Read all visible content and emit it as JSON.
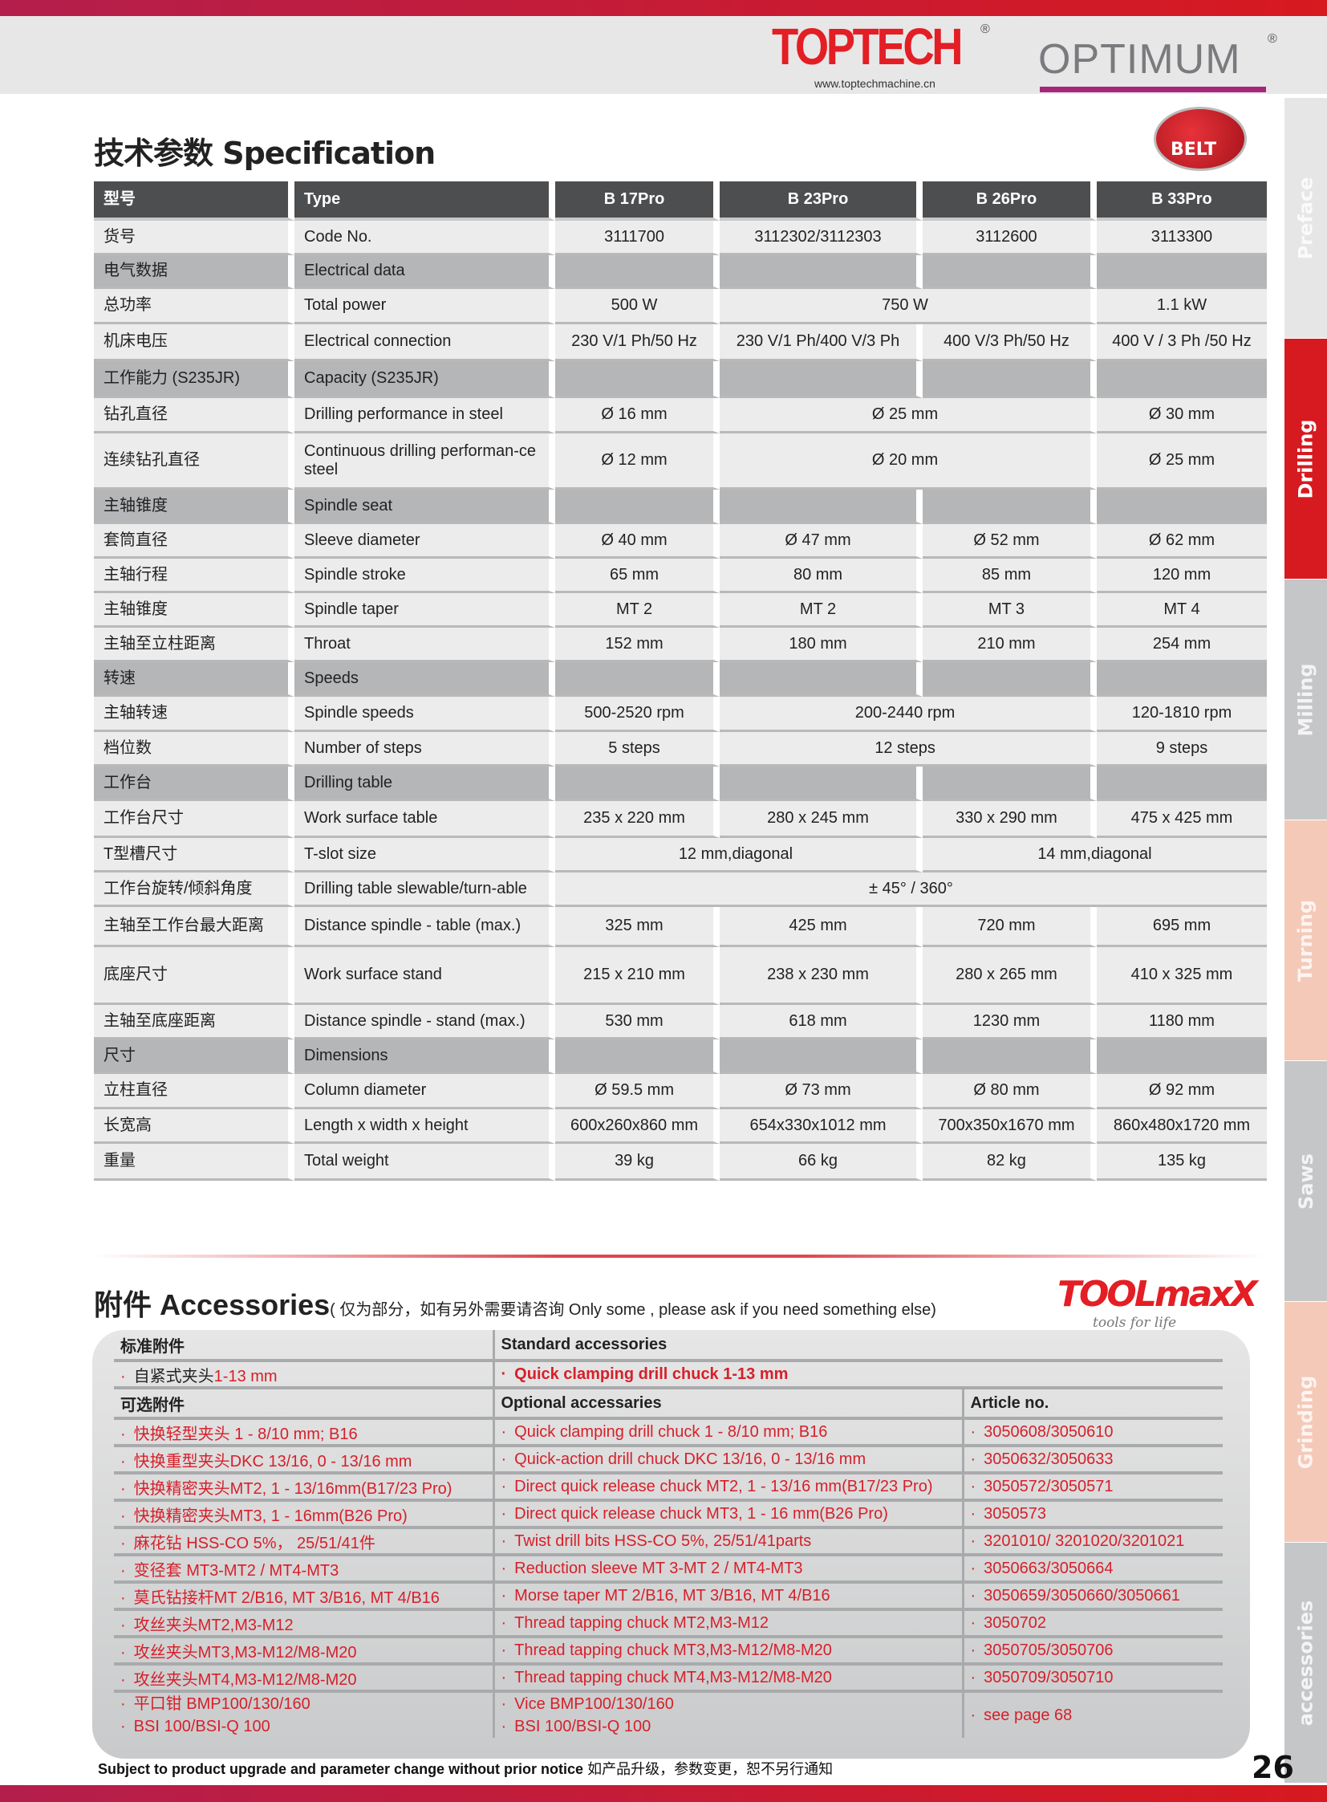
{
  "header": {
    "brand1": "TOPTECH",
    "brand1_url": "www.toptechmachine.cn",
    "brand2": "OPTIMUM",
    "registered": "®"
  },
  "title": "技术参数 Specification",
  "badge": "BELT",
  "side_tabs": [
    {
      "label": "Preface",
      "color": "#e6e6e6",
      "active": false
    },
    {
      "label": "Drilling",
      "color": "#d71920",
      "active": true
    },
    {
      "label": "Milling",
      "color": "#c5c6c8",
      "active": false
    },
    {
      "label": "Turning",
      "color": "#f4c9b8",
      "active": false
    },
    {
      "label": "Saws",
      "color": "#c5c6c8",
      "active": false
    },
    {
      "label": "Grinding",
      "color": "#f4c9b8",
      "active": false
    },
    {
      "label": "accessories",
      "color": "#c5c6c8",
      "active": false
    }
  ],
  "spec": {
    "header": [
      "型号",
      "Type",
      "B 17Pro",
      "B 23Pro",
      "B 26Pro",
      "B 33Pro"
    ],
    "rows": [
      {
        "cn": "货号",
        "en": "Code No.",
        "v": [
          "3111700",
          "3112302/3112303",
          "3112600",
          "3113300"
        ]
      },
      {
        "cn": "电气数据",
        "en": "Electrical data",
        "section": true
      },
      {
        "cn": "总功率",
        "en": "Total power",
        "v": [
          "500 W",
          "750 W",
          "1.1 kW"
        ]
      },
      {
        "cn": "机床电压",
        "en": "Electrical connection",
        "v": [
          "230 V/1 Ph/50 Hz",
          "230 V/1 Ph/400 V/3 Ph",
          "400 V/3 Ph/50 Hz",
          "400 V / 3 Ph /50 Hz"
        ]
      },
      {
        "cn": "工作能力 (S235JR)",
        "en": "Capacity (S235JR)",
        "section": true
      },
      {
        "cn": "钻孔直径",
        "en": "Drilling performance in steel",
        "v": [
          "Ø 16 mm",
          "Ø 25 mm",
          "Ø 30 mm"
        ]
      },
      {
        "cn": "连续钻孔直径",
        "en": "Continuous drilling performan-ce steel",
        "v": [
          "Ø 12 mm",
          "Ø 20 mm",
          "Ø 25 mm"
        ]
      },
      {
        "cn": "主轴锥度",
        "en": "Spindle seat",
        "section": true
      },
      {
        "cn": "套筒直径",
        "en": "Sleeve diameter",
        "v": [
          "Ø 40 mm",
          "Ø 47 mm",
          "Ø 52 mm",
          "Ø 62 mm"
        ]
      },
      {
        "cn": "主轴行程",
        "en": "Spindle stroke",
        "v": [
          "65 mm",
          "80 mm",
          "85 mm",
          "120 mm"
        ]
      },
      {
        "cn": "主轴锥度",
        "en": "Spindle taper",
        "v": [
          "MT 2",
          "MT 2",
          "MT 3",
          "MT 4"
        ]
      },
      {
        "cn": "主轴至立柱距离",
        "en": "Throat",
        "v": [
          "152 mm",
          "180 mm",
          "210 mm",
          "254 mm"
        ]
      },
      {
        "cn": "转速",
        "en": "Speeds",
        "section": true
      },
      {
        "cn": "主轴转速",
        "en": "Spindle speeds",
        "v": [
          "500-2520 rpm",
          "200-2440 rpm",
          "120-1810 rpm"
        ]
      },
      {
        "cn": "档位数",
        "en": "Number of steps",
        "v": [
          "5 steps",
          "12 steps",
          "9 steps"
        ]
      },
      {
        "cn": "工作台",
        "en": "Drilling table",
        "section": true
      },
      {
        "cn": "工作台尺寸",
        "en": "Work surface table",
        "v": [
          "235 x 220 mm",
          "280 x 245 mm",
          "330 x 290 mm",
          "475 x 425 mm"
        ]
      },
      {
        "cn": "T型槽尺寸",
        "en": "T-slot size",
        "v": [
          "12 mm,diagonal",
          "14 mm,diagonal"
        ]
      },
      {
        "cn": "工作台旋转/倾斜角度",
        "en": "Drilling table slewable/turn-able",
        "v": [
          "± 45° / 360°"
        ]
      },
      {
        "cn": "主轴至工作台最大距离",
        "en": "Distance spindle - table (max.)",
        "v": [
          "325 mm",
          "425 mm",
          "720 mm",
          "695 mm"
        ]
      },
      {
        "cn": "底座尺寸",
        "en": "Work surface stand",
        "v": [
          "215 x 210 mm",
          "238 x 230 mm",
          "280 x 265 mm",
          "410 x 325 mm"
        ]
      },
      {
        "cn": "主轴至底座距离",
        "en": "Distance spindle - stand (max.)",
        "v": [
          "530 mm",
          "618 mm",
          "1230 mm",
          "1180 mm"
        ]
      },
      {
        "cn": "尺寸",
        "en": "Dimensions",
        "section": true
      },
      {
        "cn": "立柱直径",
        "en": "Column diameter",
        "v": [
          "Ø 59.5 mm",
          "Ø 73 mm",
          "Ø 80 mm",
          "Ø 92 mm"
        ]
      },
      {
        "cn": "长宽高",
        "en": "Length x width x height",
        "v": [
          "600x260x860 mm",
          "654x330x1012 mm",
          "700x350x1670 mm",
          "860x480x1720 mm"
        ]
      },
      {
        "cn": "重量",
        "en": "Total weight",
        "v": [
          "39 kg",
          "66 kg",
          "82 kg",
          "135 kg"
        ]
      }
    ]
  },
  "accessories": {
    "title": "附件 Accessories",
    "note": "( 仅为部分，如有另外需要请咨询 Only some , please ask if you need something else)",
    "logo": "TOOLmaxX",
    "logo_tagline": "tools for life",
    "standard_header_cn": "标准附件",
    "standard_header_en": "Standard accessories",
    "standard_item_cn": "自紧式夹头",
    "standard_item_cn_spec": "1-13 mm",
    "standard_item_en": "Quick clamping drill chuck 1-13 mm",
    "optional_header_cn": "可选附件",
    "optional_header_en": "Optional accessaries",
    "article_header": "Article no.",
    "items": [
      {
        "cn": "快换轻型夹头  1 - 8/10 mm; B16",
        "en": "Quick clamping drill chuck 1 - 8/10 mm; B16",
        "no": "3050608/3050610"
      },
      {
        "cn": "快换重型夹头DKC 13/16, 0 - 13/16 mm",
        "en": "Quick-action drill chuck DKC 13/16, 0 - 13/16 mm",
        "no": "3050632/3050633"
      },
      {
        "cn": "快换精密夹头MT2, 1 - 13/16mm(B17/23 Pro)",
        "en": "Direct quick release chuck MT2, 1 - 13/16 mm(B17/23 Pro)",
        "no": "3050572/3050571"
      },
      {
        "cn": "快换精密夹头MT3, 1  - 16mm(B26 Pro)",
        "en": "Direct quick release chuck MT3, 1 - 16 mm(B26 Pro)",
        "no": "3050573"
      },
      {
        "cn": "麻花钻 HSS-CO 5%， 25/51/41件",
        "en": "Twist drill bits HSS-CO 5%, 25/51/41parts",
        "no": "3201010/ 3201020/3201021"
      },
      {
        "cn": "变径套 MT3-MT2 / MT4-MT3",
        "en": "Reduction sleeve MT 3-MT 2 / MT4-MT3",
        "no": "3050663/3050664"
      },
      {
        "cn": "莫氏钻接杆MT 2/B16, MT 3/B16, MT 4/B16",
        "en": "Morse taper MT 2/B16, MT 3/B16, MT 4/B16",
        "no": "3050659/3050660/3050661"
      },
      {
        "cn": "攻丝夹头MT2,M3-M12",
        "en": "Thread tapping chuck MT2,M3-M12",
        "no": "3050702"
      },
      {
        "cn": "攻丝夹头MT3,M3-M12/M8-M20",
        "en": "Thread tapping chuck MT3,M3-M12/M8-M20",
        "no": "3050705/3050706"
      },
      {
        "cn": "攻丝夹头MT4,M3-M12/M8-M20",
        "en": "Thread tapping chuck MT4,M3-M12/M8-M20",
        "no": "3050709/3050710"
      }
    ],
    "last": {
      "cn1": "平口钳  BMP100/130/160",
      "cn2": "BSI 100/BSI-Q 100",
      "en1": "Vice BMP100/130/160",
      "en2": "BSI 100/BSI-Q 100",
      "no": "see page 68"
    }
  },
  "footer": {
    "en": "Subject to product upgrade and parameter change without prior notice",
    "cn": "如产品升级，参数变更，恕不另行通知",
    "page": "26"
  }
}
